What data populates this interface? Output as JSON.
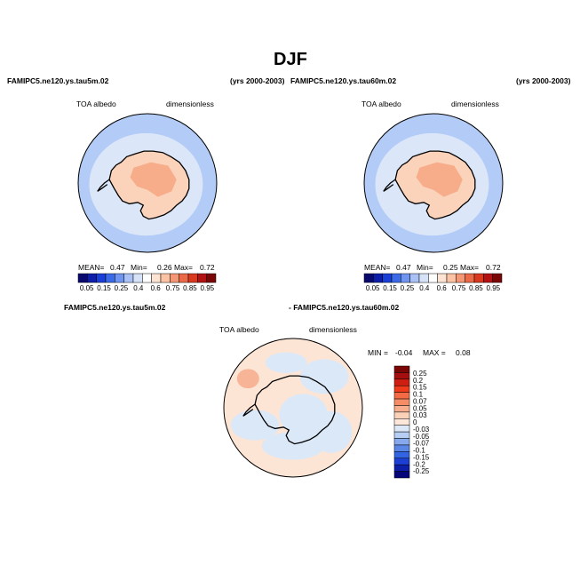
{
  "figure_title": "DJF",
  "panel_left": {
    "case": "FAMIPC5.ne120.ys.tau5m.02",
    "years": "(yrs 2000-2003)",
    "variable": "TOA albedo",
    "units": "dimensionless",
    "stats": {
      "mean_label": "MEAN=",
      "mean": "0.47",
      "min_label": "Min=",
      "min": "0.26",
      "max_label": "Max=",
      "max": "0.72"
    }
  },
  "panel_right": {
    "case": "FAMIPC5.ne120.ys.tau60m.02",
    "years": "(yrs 2000-2003)",
    "variable": "TOA albedo",
    "units": "dimensionless",
    "stats": {
      "mean_label": "MEAN=",
      "mean": "0.47",
      "min_label": "Min=",
      "min": "0.25",
      "max_label": "Max=",
      "max": "0.72"
    }
  },
  "panel_diff": {
    "case_a": "FAMIPC5.ne120.ys.tau5m.02",
    "case_b": "- FAMIPC5.ne120.ys.tau60m.02",
    "variable": "TOA albedo",
    "units": "dimensionless",
    "min_label": "MIN =",
    "min": "-0.04",
    "max_label": "MAX =",
    "max": "0.08"
  },
  "colorbar_main": {
    "labels": [
      "0.05",
      "0.15",
      "0.25",
      "0.4",
      "0.6",
      "0.75",
      "0.85",
      "0.95"
    ],
    "colors": [
      "#0a0a6e",
      "#0d1ea8",
      "#1a3fd6",
      "#3a6ae8",
      "#6f95f0",
      "#a9c1f5",
      "#d6e2f8",
      "#ffffff",
      "#fde3d2",
      "#fbc2a4",
      "#f59775",
      "#ea6a48",
      "#d8391f",
      "#b31212",
      "#7a0606"
    ]
  },
  "colorbar_diff": {
    "labels": [
      "0.25",
      "0.2",
      "0.15",
      "0.1",
      "0.07",
      "0.05",
      "0.03",
      "0",
      "-0.03",
      "-0.05",
      "-0.07",
      "-0.1",
      "-0.15",
      "-0.2",
      "-0.25"
    ],
    "colors": [
      "#7a0606",
      "#a50f0f",
      "#cf1f13",
      "#ef3b1c",
      "#f36a45",
      "#f58c66",
      "#f8ad8c",
      "#fbd1b8",
      "#fde6da",
      "#dce8f7",
      "#b6cdf4",
      "#86a9ee",
      "#5a86e6",
      "#3364e2",
      "#1c3fd4",
      "#0d1ea8",
      "#06067a"
    ]
  },
  "map_colors": {
    "ocean_blue": "#b3cbf7",
    "ice_light": "#dbe6f8",
    "land_orange": "#fbd3bb",
    "plateau_orange": "#f7ad8a",
    "diff_base": "#fde5d6",
    "diff_blue": "#dbe8f8",
    "diff_hot": "#f7b497"
  }
}
